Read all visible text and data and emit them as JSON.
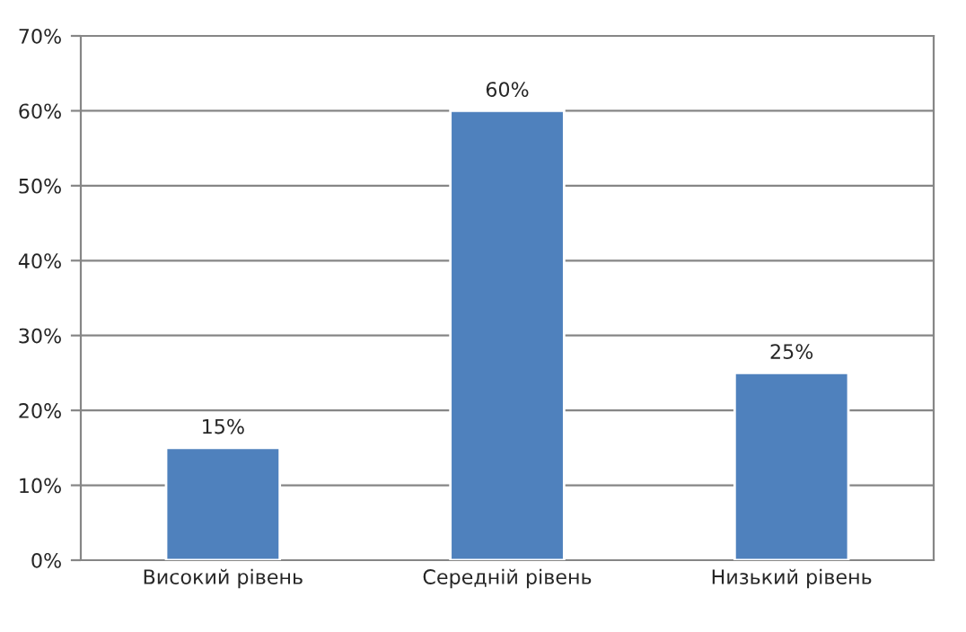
{
  "chart_data": {
    "type": "bar",
    "categories": [
      "Високий рівень",
      "Середній рівень",
      "Низький рівень"
    ],
    "values": [
      15,
      60,
      25
    ],
    "value_labels": [
      "15%",
      "60%",
      "25%"
    ],
    "color": "#4f81bd",
    "ylim": [
      0,
      70
    ],
    "yticks": [
      {
        "value": 0,
        "label": "0%"
      },
      {
        "value": 10,
        "label": "10%"
      },
      {
        "value": 20,
        "label": "20%"
      },
      {
        "value": 30,
        "label": "30%"
      },
      {
        "value": 40,
        "label": "40%"
      },
      {
        "value": 50,
        "label": "50%"
      },
      {
        "value": 60,
        "label": "60%"
      },
      {
        "value": 70,
        "label": "70%"
      }
    ],
    "grid": "y",
    "legend": false
  }
}
